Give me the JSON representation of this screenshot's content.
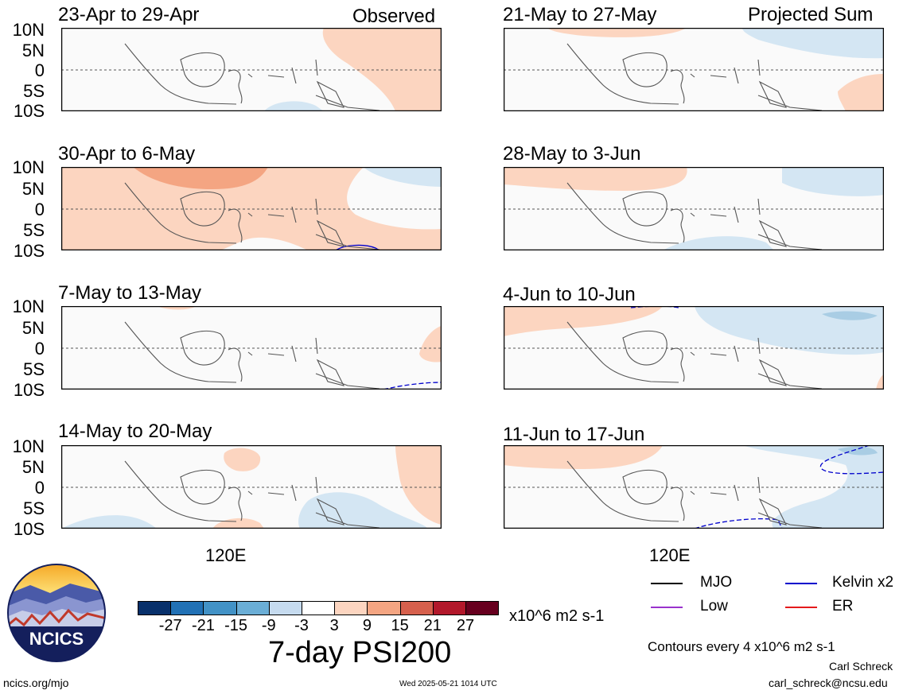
{
  "panels": [
    {
      "title": "23-Apr to 29-Apr",
      "tag": "Observed"
    },
    {
      "title": "21-May to 27-May",
      "tag": "Projected Sum"
    },
    {
      "title": "30-Apr to 6-May",
      "tag": ""
    },
    {
      "title": "28-May to 3-Jun",
      "tag": ""
    },
    {
      "title": "7-May to 13-May",
      "tag": ""
    },
    {
      "title": "4-Jun to 10-Jun",
      "tag": ""
    },
    {
      "title": "14-May to 20-May",
      "tag": ""
    },
    {
      "title": "11-Jun to 17-Jun",
      "tag": ""
    }
  ],
  "lat_labels": [
    "10N",
    "5N",
    "0",
    "5S",
    "10S"
  ],
  "lon_label": "120E",
  "colorbar": {
    "colors": [
      "#08306b",
      "#2171b5",
      "#4292c6",
      "#6baed6",
      "#c6dbef",
      "#ffffff",
      "#fcd5c0",
      "#f4a582",
      "#d6604d",
      "#b2182b",
      "#67001f"
    ],
    "ticks": [
      "-27",
      "-21",
      "-15",
      "-9",
      "-3",
      "3",
      "9",
      "15",
      "21",
      "27"
    ],
    "units": "x10^6 m2 s-1",
    "title": "7-day PSI200"
  },
  "legend": [
    {
      "label": "MJO",
      "color": "#000000"
    },
    {
      "label": "Kelvin x2",
      "color": "#0000cc"
    },
    {
      "label": "Low",
      "color": "#9932cc"
    },
    {
      "label": "ER",
      "color": "#e41a1c"
    }
  ],
  "contour_note": "Contours every 4 x10^6 m2 s-1",
  "logo_text": "NCICS",
  "footer": {
    "url": "ncics.org/mjo",
    "timestamp": "Wed 2025-05-21 1014 UTC",
    "author": "Carl Schreck",
    "email": "carl_schreck@ncsu.edu"
  }
}
